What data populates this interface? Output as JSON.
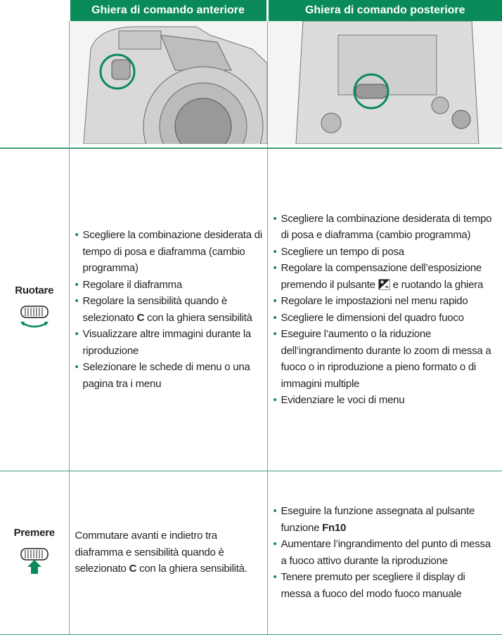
{
  "header": {
    "columns": [
      "Ghiera di comando anteriore",
      "Ghiera di comando posteriore"
    ]
  },
  "rows": [
    {
      "label": "Ruotare",
      "front": [
        "Scegliere la combinazione desiderata di tempo di posa e diaframma (cambio programma)",
        "Regolare il diaframma",
        [
          "Regolare la sensibilità quando è selezionato ",
          "C",
          " con la ghiera sensibilità"
        ],
        "Visualizzare altre immagini durante la riproduzione",
        "Selezionare le schede di menu o una pagina tra i menu"
      ],
      "rear": [
        "Scegliere la combinazione desiderata di tempo di posa e diaframma (cambio programma)",
        "Scegliere un tempo di posa",
        [
          "Regolare la compensazione dell’esposizione premendo il pulsante",
          "e ruotando la ghiera"
        ],
        "Regolare le impostazioni nel menu rapido",
        "Scegliere le dimensioni del quadro fuoco",
        "Eseguire l’aumento o la riduzione dell’ingrandimento durante lo zoom di messa a fuoco o in riproduzione a pieno formato o di immagini multiple",
        "Evidenziare le voci di menu"
      ]
    },
    {
      "label": "Premere",
      "front": [
        "Commutare avanti e indietro tra diaframma e sensibilità quando è selezionato ",
        "C",
        " con la ghiera sensibilità."
      ],
      "rear": [
        [
          "Eseguire la funzione assegnata al pulsante funzione ",
          "Fn10"
        ],
        "Aumentare l’ingrandimento del punto di messa a fuoco attivo durante la riproduzione",
        "Tenere premuto per scegliere il display di messa a fuoco del modo fuoco manuale"
      ]
    }
  ]
}
